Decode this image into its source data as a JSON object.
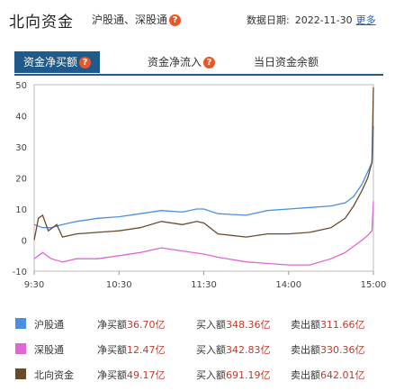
{
  "header": {
    "title": "北向资金",
    "subtitle": "沪股通、深股通",
    "help": "?",
    "date_label": "数据日期:",
    "date_value": "2022-11-30",
    "more": "更多"
  },
  "tabs": [
    {
      "label": "资金净买额",
      "active": true
    },
    {
      "label": "资金净流入",
      "active": false
    },
    {
      "label": "当日资金余额",
      "active": false
    }
  ],
  "colors": {
    "hgt": "#4a90e2",
    "sgt": "#e066d6",
    "north": "#6b4a2a",
    "accent": "#1f5a8a"
  },
  "chart_data": {
    "type": "line",
    "x": [
      "9:30",
      "10:30",
      "11:30",
      "14:00",
      "15:00"
    ],
    "xlabel": "",
    "ylabel": "",
    "ylim": [
      -10,
      50
    ],
    "yticks": [
      -10,
      0,
      10,
      20,
      30,
      40,
      50
    ],
    "grid": false,
    "series": [
      {
        "name": "沪股通",
        "color": "#4a90e2",
        "values": [
          [
            0,
            5
          ],
          [
            6,
            4
          ],
          [
            12,
            4
          ],
          [
            20,
            5
          ],
          [
            30,
            6
          ],
          [
            45,
            7
          ],
          [
            60,
            7.5
          ],
          [
            75,
            8.5
          ],
          [
            90,
            9.5
          ],
          [
            105,
            9
          ],
          [
            115,
            10
          ],
          [
            120,
            10
          ],
          [
            130,
            8.5
          ],
          [
            150,
            8
          ],
          [
            165,
            9.5
          ],
          [
            180,
            10
          ],
          [
            195,
            10.5
          ],
          [
            210,
            11
          ],
          [
            220,
            12
          ],
          [
            226,
            14
          ],
          [
            232,
            18
          ],
          [
            236,
            22
          ],
          [
            239,
            25
          ],
          [
            240,
            36.7
          ]
        ]
      },
      {
        "name": "深股通",
        "color": "#e066d6",
        "values": [
          [
            0,
            -6
          ],
          [
            6,
            -4
          ],
          [
            12,
            -6
          ],
          [
            20,
            -7
          ],
          [
            30,
            -6
          ],
          [
            45,
            -6
          ],
          [
            60,
            -5
          ],
          [
            75,
            -4
          ],
          [
            90,
            -2.5
          ],
          [
            105,
            -3.5
          ],
          [
            120,
            -4.5
          ],
          [
            130,
            -5.5
          ],
          [
            150,
            -7
          ],
          [
            165,
            -7.5
          ],
          [
            180,
            -8
          ],
          [
            195,
            -8
          ],
          [
            210,
            -6
          ],
          [
            220,
            -4
          ],
          [
            226,
            -2
          ],
          [
            232,
            0
          ],
          [
            236,
            1.5
          ],
          [
            239,
            3
          ],
          [
            240,
            12.47
          ]
        ]
      },
      {
        "name": "北向资金",
        "color": "#6b4a2a",
        "values": [
          [
            0,
            0
          ],
          [
            3,
            7
          ],
          [
            6,
            8
          ],
          [
            10,
            3
          ],
          [
            16,
            5
          ],
          [
            20,
            1
          ],
          [
            30,
            2
          ],
          [
            45,
            2.5
          ],
          [
            60,
            3
          ],
          [
            75,
            4
          ],
          [
            90,
            6
          ],
          [
            105,
            5
          ],
          [
            115,
            6
          ],
          [
            120,
            5.5
          ],
          [
            130,
            2
          ],
          [
            150,
            1
          ],
          [
            165,
            2
          ],
          [
            180,
            2
          ],
          [
            195,
            2.5
          ],
          [
            210,
            4
          ],
          [
            220,
            7
          ],
          [
            226,
            11
          ],
          [
            232,
            16
          ],
          [
            236,
            20
          ],
          [
            239,
            25
          ],
          [
            240,
            49.17
          ]
        ]
      }
    ]
  },
  "legend": [
    {
      "name": "沪股通",
      "net_label": "净买额",
      "net": "36.70亿",
      "buy_label": "买入额",
      "buy": "348.36亿",
      "sell_label": "卖出额",
      "sell": "311.66亿"
    },
    {
      "name": "深股通",
      "net_label": "净买额",
      "net": "12.47亿",
      "buy_label": "买入额",
      "buy": "342.83亿",
      "sell_label": "卖出额",
      "sell": "330.36亿"
    },
    {
      "name": "北向资金",
      "net_label": "净买额",
      "net": "49.17亿",
      "buy_label": "买入额",
      "buy": "691.19亿",
      "sell_label": "卖出额",
      "sell": "642.01亿"
    }
  ]
}
